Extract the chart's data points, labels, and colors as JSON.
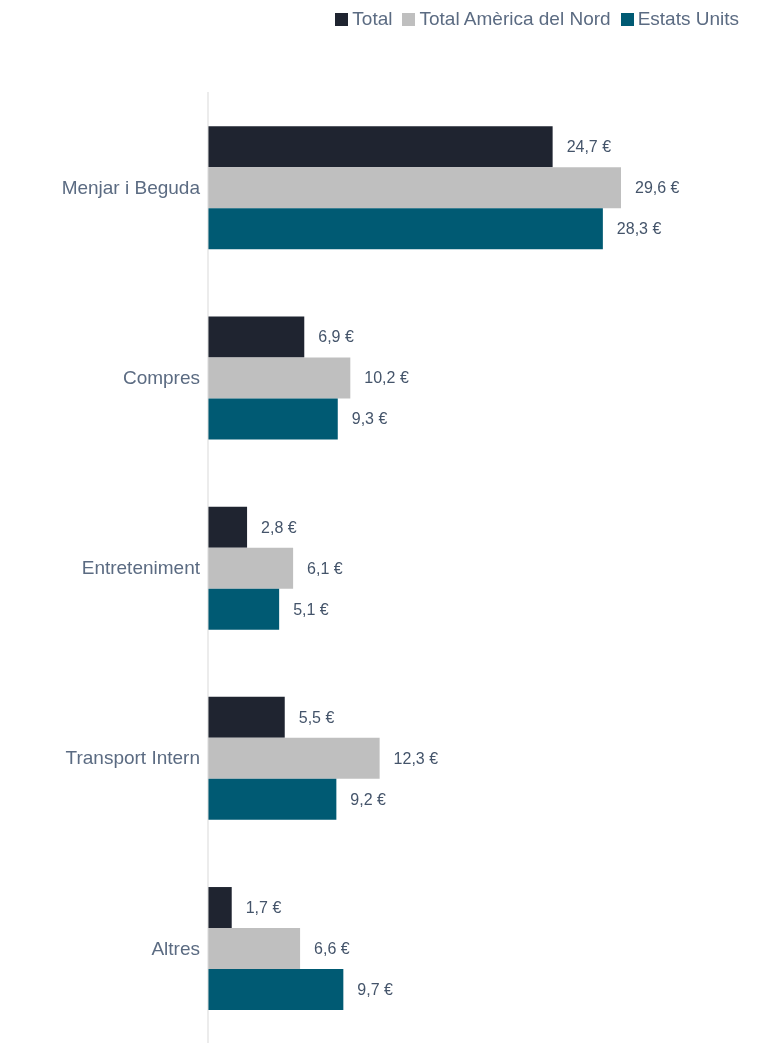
{
  "chart_data": {
    "type": "bar",
    "orientation": "horizontal",
    "categories": [
      "Menjar i Beguda",
      "Compres",
      "Entreteniment",
      "Transport Intern",
      "Altres"
    ],
    "series": [
      {
        "name": "Total",
        "color": "#1f2430",
        "values": [
          24.7,
          6.9,
          2.8,
          5.5,
          1.7
        ],
        "value_labels": [
          "24,7 €",
          "6,9 €",
          "2,8 €",
          "5,5 €",
          "1,7 €"
        ]
      },
      {
        "name": "Total Amèrica del Nord",
        "color": "#bfbfbf",
        "values": [
          29.6,
          10.2,
          6.1,
          12.3,
          6.6
        ],
        "value_labels": [
          "29,6 €",
          "10,2 €",
          "6,1 €",
          "12,3 €",
          "6,6 €"
        ]
      },
      {
        "name": "Estats Units",
        "color": "#005a73",
        "values": [
          28.3,
          9.3,
          5.1,
          9.2,
          9.7
        ],
        "value_labels": [
          "28,3 €",
          "9,3 €",
          "5,1 €",
          "9,2 €",
          "9,7 €"
        ]
      }
    ],
    "legend": "top right",
    "grid": false
  }
}
